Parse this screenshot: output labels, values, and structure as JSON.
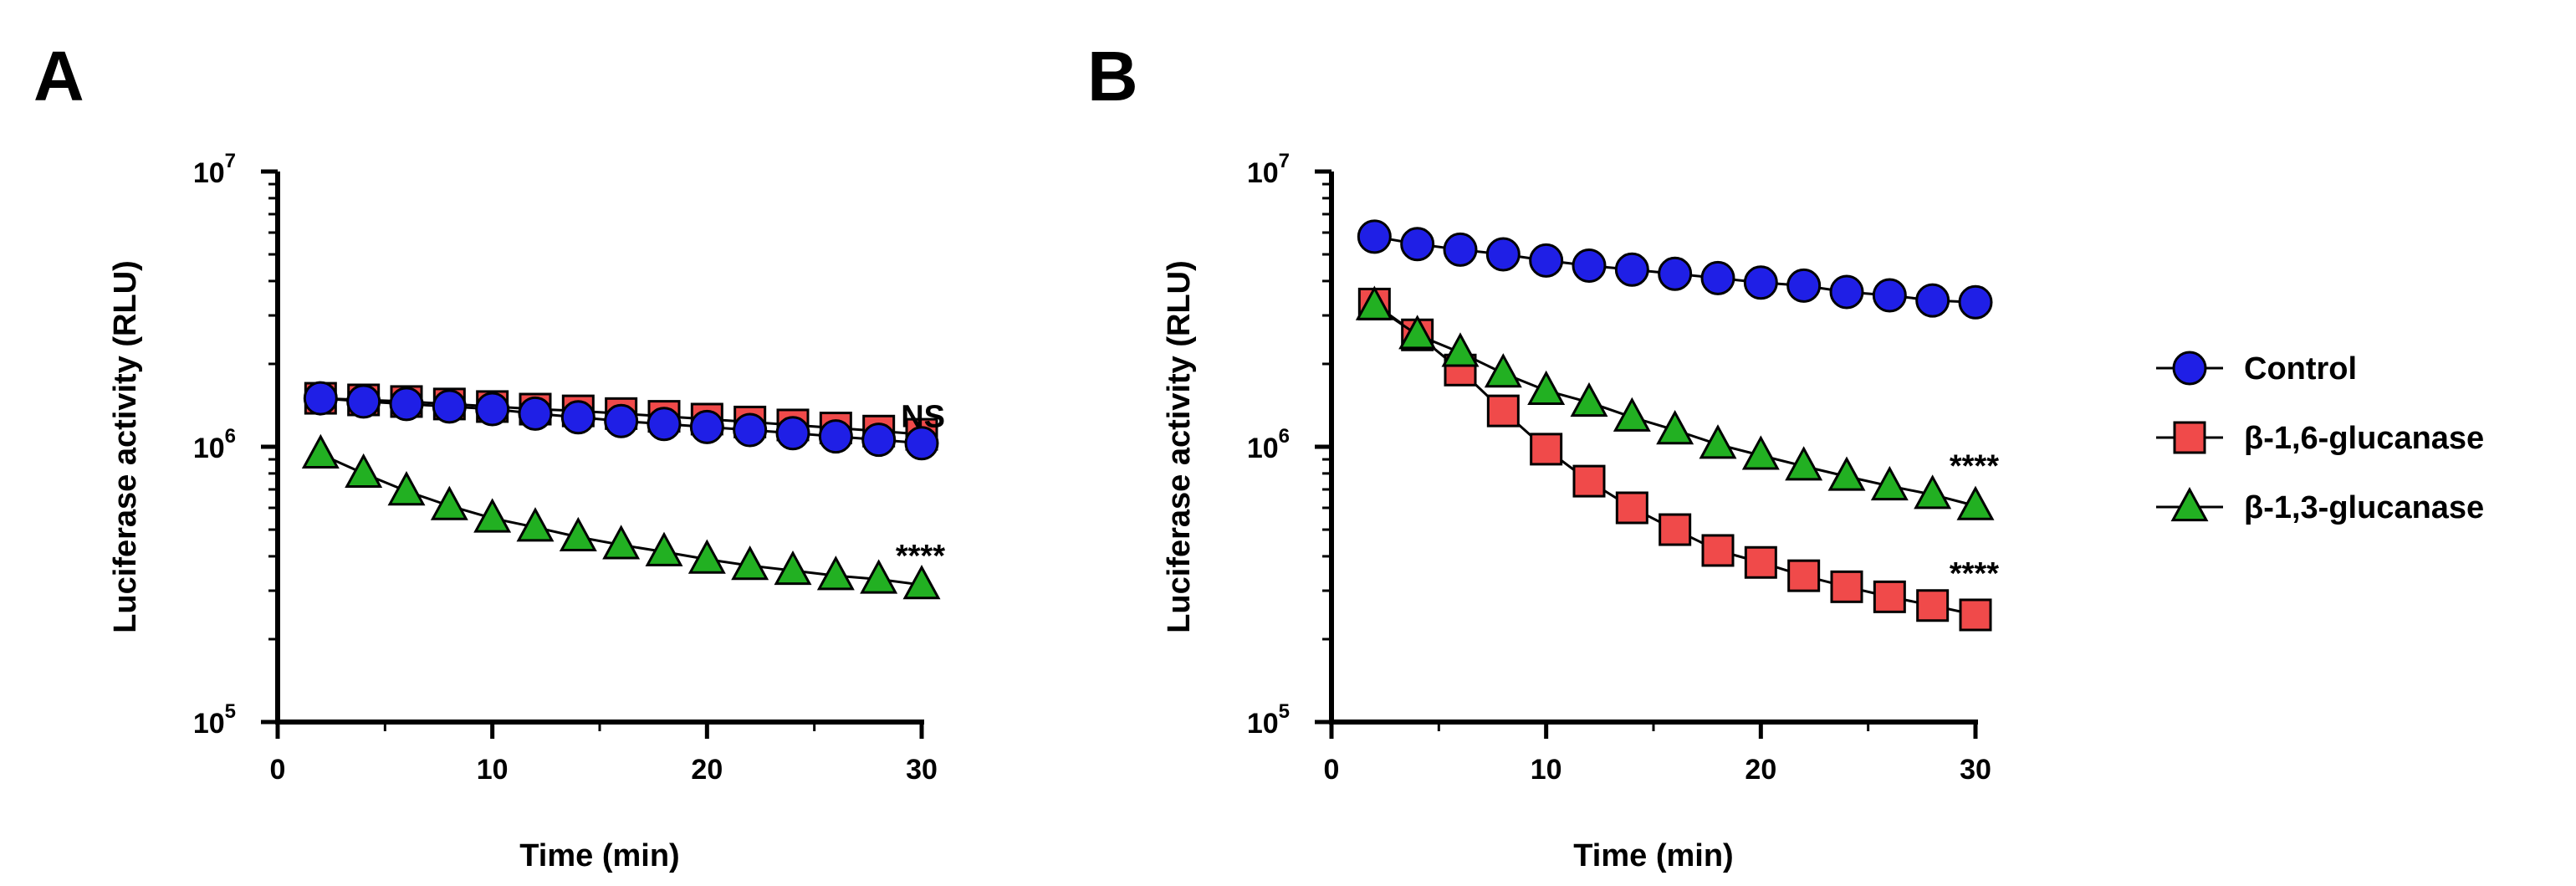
{
  "chart_data": [
    {
      "panel": "A",
      "type": "line",
      "xlabel": "Time (min)",
      "ylabel": "Luciferase activity (RLU)",
      "yscale": "log",
      "xlim": [
        0,
        30
      ],
      "ylim": [
        100000,
        10000000
      ],
      "xticks": [
        0,
        10,
        20,
        30
      ],
      "yticks": [
        {
          "base": "10",
          "exp": "5",
          "value": 100000
        },
        {
          "base": "10",
          "exp": "6",
          "value": 1000000
        },
        {
          "base": "10",
          "exp": "7",
          "value": 10000000
        }
      ],
      "x": [
        2,
        4,
        6,
        8,
        10,
        12,
        14,
        16,
        18,
        20,
        22,
        24,
        26,
        28,
        30
      ],
      "series": [
        {
          "name": "β-1,6-glucanase",
          "marker": "square",
          "color": "#f04a4a",
          "values": [
            1500000,
            1480000,
            1460000,
            1430000,
            1400000,
            1370000,
            1350000,
            1320000,
            1290000,
            1260000,
            1230000,
            1200000,
            1170000,
            1140000,
            1110000
          ]
        },
        {
          "name": "Control",
          "marker": "circle",
          "color": "#1f1fe6",
          "values": [
            1500000,
            1460000,
            1430000,
            1400000,
            1370000,
            1320000,
            1280000,
            1240000,
            1210000,
            1180000,
            1150000,
            1120000,
            1090000,
            1060000,
            1030000
          ]
        },
        {
          "name": "β-1,3-glucanase",
          "marker": "triangle",
          "color": "#22b022",
          "values": [
            940000,
            800000,
            690000,
            610000,
            550000,
            510000,
            470000,
            440000,
            415000,
            390000,
            370000,
            355000,
            340000,
            330000,
            315000
          ]
        }
      ],
      "annotations": [
        {
          "text": "NS",
          "x": 30,
          "y": 1300000
        },
        {
          "text": "****",
          "x": 30,
          "y": 405000
        }
      ]
    },
    {
      "panel": "B",
      "type": "line",
      "xlabel": "Time (min)",
      "ylabel": "Luciferase activity (RLU)",
      "yscale": "log",
      "xlim": [
        0,
        30
      ],
      "ylim": [
        100000,
        10000000
      ],
      "xticks": [
        0,
        10,
        20,
        30
      ],
      "yticks": [
        {
          "base": "10",
          "exp": "5",
          "value": 100000
        },
        {
          "base": "10",
          "exp": "6",
          "value": 1000000
        },
        {
          "base": "10",
          "exp": "7",
          "value": 10000000
        }
      ],
      "x": [
        2,
        4,
        6,
        8,
        10,
        12,
        14,
        16,
        18,
        20,
        22,
        24,
        26,
        28,
        30
      ],
      "series": [
        {
          "name": "Control",
          "marker": "circle",
          "color": "#1f1fe6",
          "values": [
            5800000,
            5450000,
            5200000,
            5000000,
            4750000,
            4550000,
            4400000,
            4250000,
            4100000,
            3950000,
            3850000,
            3650000,
            3550000,
            3400000,
            3350000
          ]
        },
        {
          "name": "β-1,6-glucanase",
          "marker": "square",
          "color": "#f04a4a",
          "values": [
            3300000,
            2550000,
            1900000,
            1350000,
            980000,
            750000,
            600000,
            500000,
            420000,
            380000,
            340000,
            310000,
            285000,
            265000,
            245000
          ]
        },
        {
          "name": "β-1,3-glucanase",
          "marker": "triangle",
          "color": "#22b022",
          "values": [
            3250000,
            2550000,
            2200000,
            1850000,
            1600000,
            1450000,
            1280000,
            1150000,
            1020000,
            930000,
            850000,
            780000,
            720000,
            670000,
            610000
          ]
        }
      ],
      "annotations": [
        {
          "text": "****",
          "x": 30,
          "y": 860000
        },
        {
          "text": "****",
          "x": 30,
          "y": 350000
        }
      ]
    }
  ],
  "legend": [
    {
      "label": "Control",
      "marker": "circle",
      "color": "#1f1fe6"
    },
    {
      "label": "β-1,6-glucanase",
      "marker": "square",
      "color": "#f04a4a"
    },
    {
      "label": "β-1,3-glucanase",
      "marker": "triangle",
      "color": "#22b022"
    }
  ]
}
